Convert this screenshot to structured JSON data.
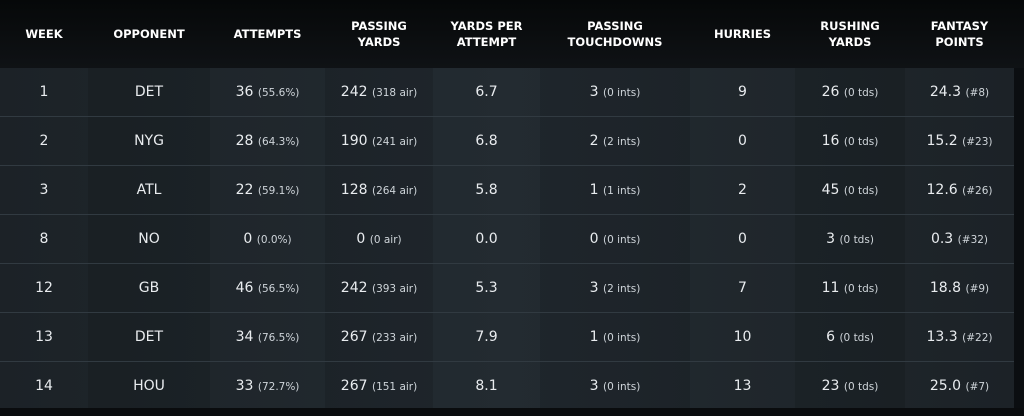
{
  "columns": [
    "WEEK",
    "OPPONENT",
    "ATTEMPTS",
    "PASSING YARDS",
    "YARDS PER ATTEMPT",
    "PASSING TOUCHDOWNS",
    "HURRIES",
    "RUSHING YARDS",
    "FANTASY POINTS"
  ],
  "rows": [
    {
      "week": "1",
      "opponent": "DET",
      "attempts": "36",
      "attempts_sub": "(55.6%)",
      "passing_yards": "242",
      "passing_yards_sub": "(318 air)",
      "ypa": "6.7",
      "passing_td": "3",
      "passing_td_sub": "(0 ints)",
      "hurries": "9",
      "rushing_yards": "26",
      "rushing_yards_sub": "(0 tds)",
      "fantasy_points": "24.3",
      "fantasy_points_sub": "(#8)"
    },
    {
      "week": "2",
      "opponent": "NYG",
      "attempts": "28",
      "attempts_sub": "(64.3%)",
      "passing_yards": "190",
      "passing_yards_sub": "(241 air)",
      "ypa": "6.8",
      "passing_td": "2",
      "passing_td_sub": "(2 ints)",
      "hurries": "0",
      "rushing_yards": "16",
      "rushing_yards_sub": "(0 tds)",
      "fantasy_points": "15.2",
      "fantasy_points_sub": "(#23)"
    },
    {
      "week": "3",
      "opponent": "ATL",
      "attempts": "22",
      "attempts_sub": "(59.1%)",
      "passing_yards": "128",
      "passing_yards_sub": "(264 air)",
      "ypa": "5.8",
      "passing_td": "1",
      "passing_td_sub": "(1 ints)",
      "hurries": "2",
      "rushing_yards": "45",
      "rushing_yards_sub": "(0 tds)",
      "fantasy_points": "12.6",
      "fantasy_points_sub": "(#26)"
    },
    {
      "week": "8",
      "opponent": "NO",
      "attempts": "0",
      "attempts_sub": "(0.0%)",
      "passing_yards": "0",
      "passing_yards_sub": "(0 air)",
      "ypa": "0.0",
      "passing_td": "0",
      "passing_td_sub": "(0 ints)",
      "hurries": "0",
      "rushing_yards": "3",
      "rushing_yards_sub": "(0 tds)",
      "fantasy_points": "0.3",
      "fantasy_points_sub": "(#32)"
    },
    {
      "week": "12",
      "opponent": "GB",
      "attempts": "46",
      "attempts_sub": "(56.5%)",
      "passing_yards": "242",
      "passing_yards_sub": "(393 air)",
      "ypa": "5.3",
      "passing_td": "3",
      "passing_td_sub": "(2 ints)",
      "hurries": "7",
      "rushing_yards": "11",
      "rushing_yards_sub": "(0 tds)",
      "fantasy_points": "18.8",
      "fantasy_points_sub": "(#9)"
    },
    {
      "week": "13",
      "opponent": "DET",
      "attempts": "34",
      "attempts_sub": "(76.5%)",
      "passing_yards": "267",
      "passing_yards_sub": "(233 air)",
      "ypa": "7.9",
      "passing_td": "1",
      "passing_td_sub": "(0 ints)",
      "hurries": "10",
      "rushing_yards": "6",
      "rushing_yards_sub": "(0 tds)",
      "fantasy_points": "13.3",
      "fantasy_points_sub": "(#22)"
    },
    {
      "week": "14",
      "opponent": "HOU",
      "attempts": "33",
      "attempts_sub": "(72.7%)",
      "passing_yards": "267",
      "passing_yards_sub": "(151 air)",
      "ypa": "8.1",
      "passing_td": "3",
      "passing_td_sub": "(0 ints)",
      "hurries": "13",
      "rushing_yards": "23",
      "rushing_yards_sub": "(0 tds)",
      "fantasy_points": "25.0",
      "fantasy_points_sub": "(#7)"
    }
  ]
}
